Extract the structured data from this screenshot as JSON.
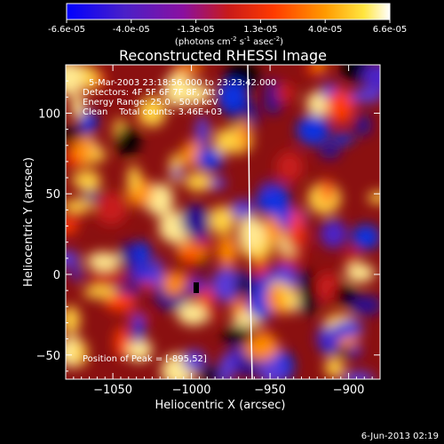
{
  "colorbar": {
    "ticks": [
      "-6.6e-05",
      "-4.0e-05",
      "-1.3e-05",
      "1.3e-05",
      "4.0e-05",
      "6.6e-05"
    ],
    "unit_prefix": "(photons cm",
    "unit_exp1": "-2",
    "unit_mid": " s",
    "unit_exp2": "-1",
    "unit_mid2": " asec",
    "unit_exp3": "-2",
    "unit_suffix": ")"
  },
  "annotations": {
    "time": "5-Mar-2003 23:18:56.000 to 23:23:42.000",
    "detectors": "Detectors: 4F 5F 6F 7F 8F, Att 0",
    "energy": "Energy Range: 25.0 - 50.0 keV",
    "clean": "Clean    Total counts: 3.46E+03",
    "peak": "Position of Peak = [-895,52]"
  },
  "footer_date": "6-Jun-2013 02:19",
  "chart_data": {
    "type": "heatmap",
    "title": "Reconstructed RHESSI Image",
    "xlabel": "Heliocentric X (arcsec)",
    "ylabel": "Heliocentric Y (arcsec)",
    "xlim": [
      -1080,
      -880
    ],
    "ylim": [
      -65,
      130
    ],
    "xticks": [
      -1050,
      -1000,
      -950,
      -900
    ],
    "yticks": [
      -50,
      0,
      50,
      100
    ],
    "clim": [
      -6.6e-05,
      6.6e-05
    ],
    "colormap": "IDL Rainbow+white (blue-purple-red-orange-yellow-white)",
    "peak_position": [
      -895,
      52
    ],
    "grid": false
  }
}
